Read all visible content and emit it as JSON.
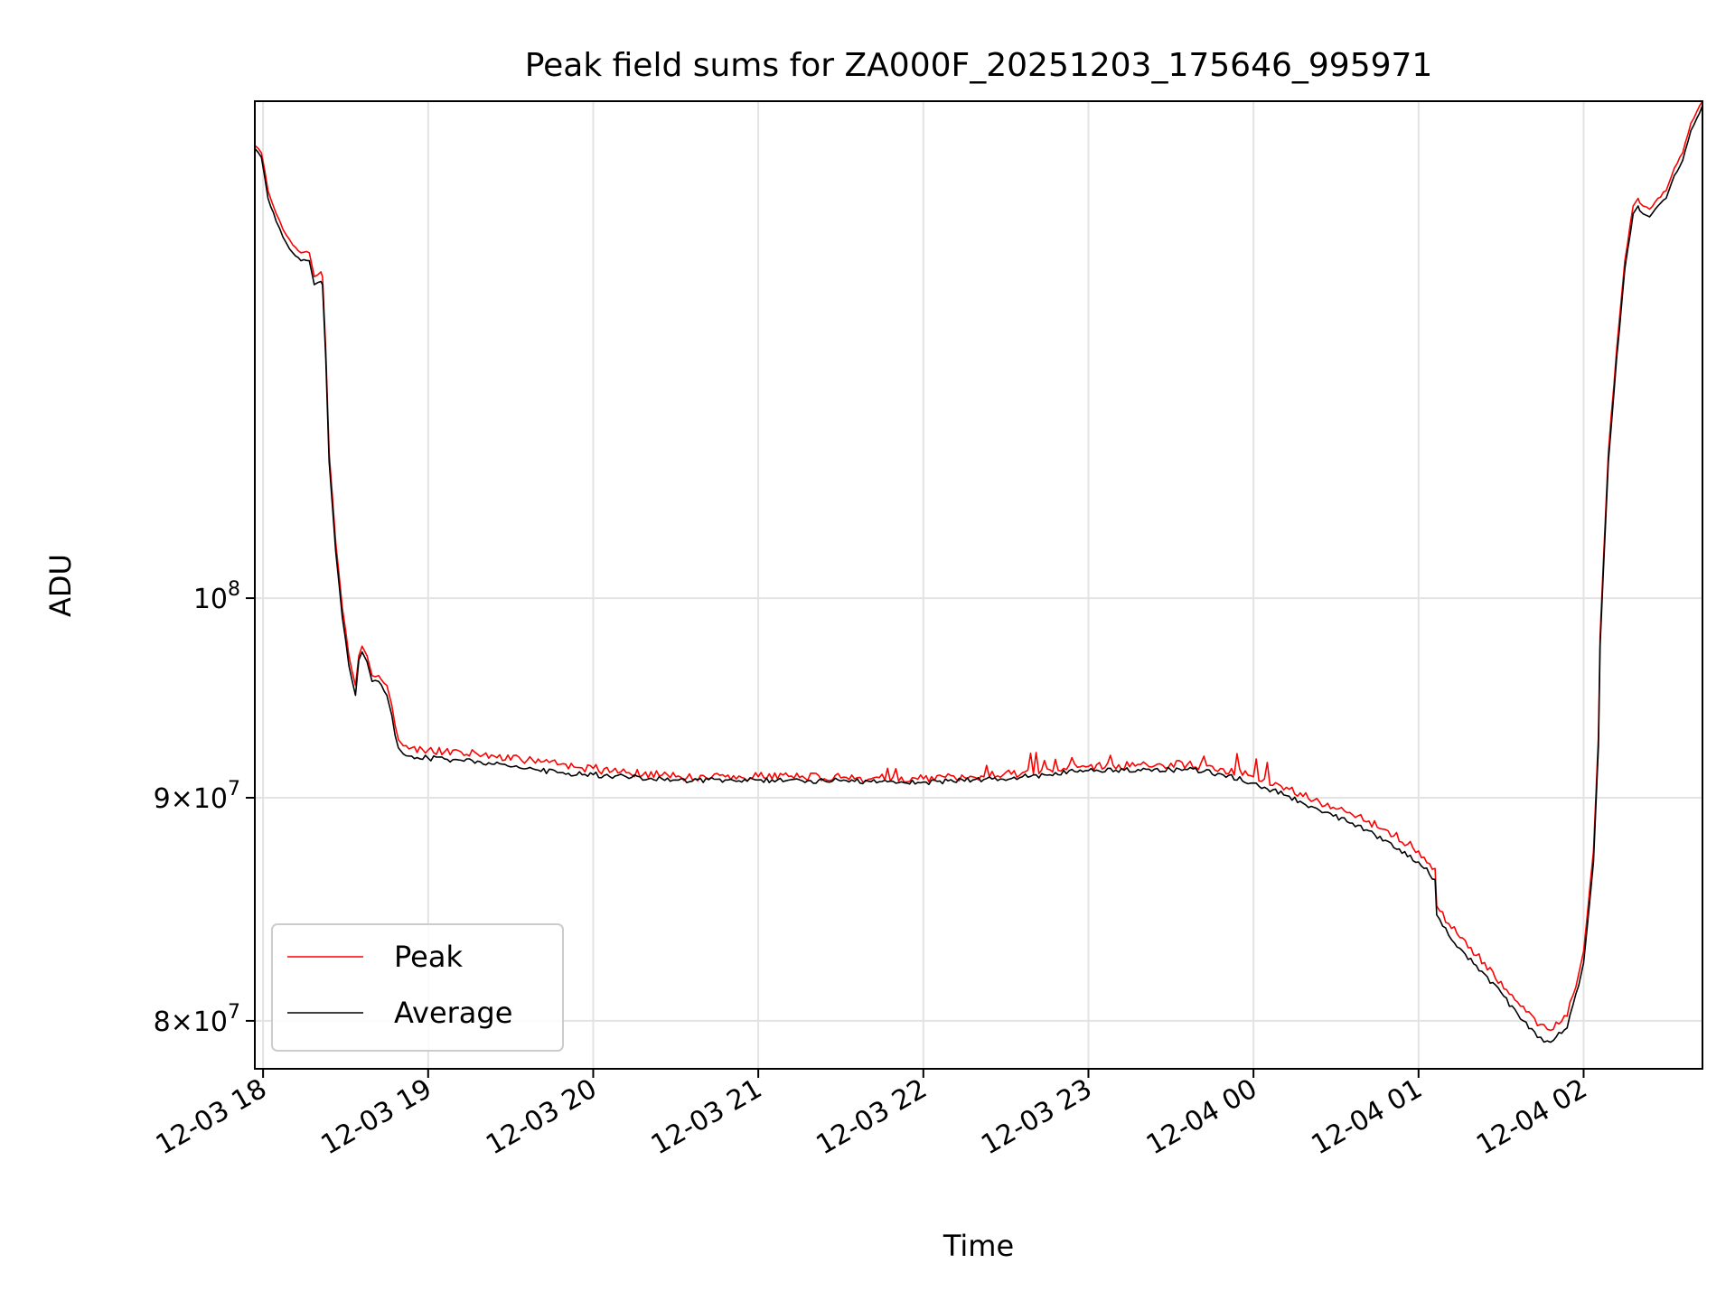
{
  "chart_data": {
    "type": "line",
    "title": "Peak field sums for ZA000F_20251203_175646_995971",
    "xlabel": "Time",
    "ylabel": "ADU",
    "yscale": "log",
    "grid": true,
    "legend_position": "lower-left",
    "xlim": [
      17.95,
      26.72
    ],
    "ylim": [
      78000000,
      130000000
    ],
    "x_units": "hours since 12-03 00:00",
    "x_ticks": [
      {
        "value": 18,
        "label": "12-03 18"
      },
      {
        "value": 19,
        "label": "12-03 19"
      },
      {
        "value": 20,
        "label": "12-03 20"
      },
      {
        "value": 21,
        "label": "12-03 21"
      },
      {
        "value": 22,
        "label": "12-03 22"
      },
      {
        "value": 23,
        "label": "12-03 23"
      },
      {
        "value": 24,
        "label": "12-04 00"
      },
      {
        "value": 25,
        "label": "12-04 01"
      },
      {
        "value": 26,
        "label": "12-04 02"
      }
    ],
    "y_ticks": [
      {
        "value": 80000000,
        "base": "8",
        "exp": "7"
      },
      {
        "value": 90000000,
        "base": "9",
        "exp": "7"
      },
      {
        "value": 100000000,
        "base": "10",
        "exp": "8"
      }
    ],
    "series": [
      {
        "name": "Peak",
        "color": "#ff0000",
        "x": [
          17.95,
          17.99,
          18.03,
          18.08,
          18.12,
          18.18,
          18.23,
          18.28,
          18.31,
          18.35,
          18.36,
          18.38,
          18.4,
          18.44,
          18.48,
          18.52,
          18.56,
          18.58,
          18.6,
          18.63,
          18.66,
          18.7,
          18.75,
          18.78,
          18.8,
          18.82,
          18.85,
          18.9,
          19.0,
          19.2,
          19.4,
          19.6,
          19.8,
          20.0,
          20.2,
          20.5,
          20.8,
          21.0,
          21.5,
          22.0,
          22.3,
          22.6,
          23.0,
          23.3,
          23.6,
          23.8,
          24.0,
          24.2,
          24.4,
          24.6,
          24.8,
          25.0,
          25.1,
          25.11,
          25.2,
          25.4,
          25.6,
          25.72,
          25.8,
          25.9,
          25.97,
          26.0,
          26.06,
          26.09,
          26.1,
          26.12,
          26.15,
          26.2,
          26.25,
          26.3,
          26.33,
          26.34,
          26.36,
          26.4,
          26.45,
          26.5,
          26.55,
          26.6,
          26.65,
          26.72
        ],
        "y": [
          127000000,
          126500000,
          124000000,
          122500000,
          121500000,
          120500000,
          120000000,
          120000000,
          118500000,
          118800000,
          118500000,
          114000000,
          108000000,
          103000000,
          99500000,
          97000000,
          95500000,
          97000000,
          97500000,
          97000000,
          96000000,
          96000000,
          95500000,
          94500000,
          93500000,
          92800000,
          92500000,
          92400000,
          92300000,
          92200000,
          92000000,
          91800000,
          91600000,
          91400000,
          91200000,
          91000000,
          91000000,
          91000000,
          90950000,
          90900000,
          91000000,
          91200000,
          91500000,
          91600000,
          91600000,
          91400000,
          91000000,
          90500000,
          89800000,
          89200000,
          88500000,
          87500000,
          86700000,
          85000000,
          84000000,
          82500000,
          80800000,
          79800000,
          79600000,
          80200000,
          82000000,
          83000000,
          87500000,
          93000000,
          98000000,
          102000000,
          108000000,
          114000000,
          119500000,
          123000000,
          123500000,
          123200000,
          123000000,
          122800000,
          123500000,
          124000000,
          125500000,
          126500000,
          128500000,
          130000000
        ]
      },
      {
        "name": "Average",
        "color": "#000000",
        "x": [
          17.95,
          17.99,
          18.03,
          18.08,
          18.12,
          18.18,
          18.23,
          18.28,
          18.31,
          18.35,
          18.36,
          18.38,
          18.4,
          18.44,
          18.48,
          18.52,
          18.56,
          18.58,
          18.6,
          18.63,
          18.66,
          18.7,
          18.75,
          18.78,
          18.8,
          18.82,
          18.85,
          18.9,
          19.0,
          19.2,
          19.4,
          19.6,
          19.8,
          20.0,
          20.2,
          20.5,
          20.8,
          21.0,
          21.5,
          22.0,
          22.3,
          22.6,
          23.0,
          23.3,
          23.6,
          23.8,
          24.0,
          24.2,
          24.4,
          24.6,
          24.8,
          25.0,
          25.1,
          25.11,
          25.2,
          25.4,
          25.6,
          25.72,
          25.8,
          25.9,
          25.97,
          26.0,
          26.06,
          26.09,
          26.1,
          26.12,
          26.15,
          26.2,
          26.25,
          26.3,
          26.33,
          26.34,
          26.36,
          26.4,
          26.45,
          26.5,
          26.55,
          26.6,
          26.65,
          26.72
        ],
        "y": [
          126800000,
          126200000,
          123500000,
          122000000,
          121000000,
          120000000,
          119500000,
          119500000,
          118000000,
          118200000,
          118000000,
          113500000,
          107500000,
          102500000,
          99000000,
          96500000,
          95000000,
          96800000,
          97200000,
          96700000,
          95700000,
          95700000,
          95000000,
          94000000,
          93000000,
          92400000,
          92100000,
          92000000,
          91900000,
          91800000,
          91600000,
          91400000,
          91200000,
          91100000,
          91000000,
          90850000,
          90850000,
          90850000,
          90800000,
          90750000,
          90850000,
          91000000,
          91300000,
          91350000,
          91350000,
          91150000,
          90700000,
          90100000,
          89400000,
          88800000,
          88000000,
          87000000,
          86200000,
          84600000,
          83500000,
          82000000,
          80300000,
          79300000,
          79100000,
          79700000,
          81500000,
          82500000,
          87000000,
          92500000,
          97500000,
          101500000,
          107500000,
          113500000,
          119000000,
          122500000,
          123000000,
          122700000,
          122500000,
          122300000,
          123000000,
          123500000,
          125000000,
          126000000,
          128000000,
          129700000
        ]
      }
    ]
  }
}
